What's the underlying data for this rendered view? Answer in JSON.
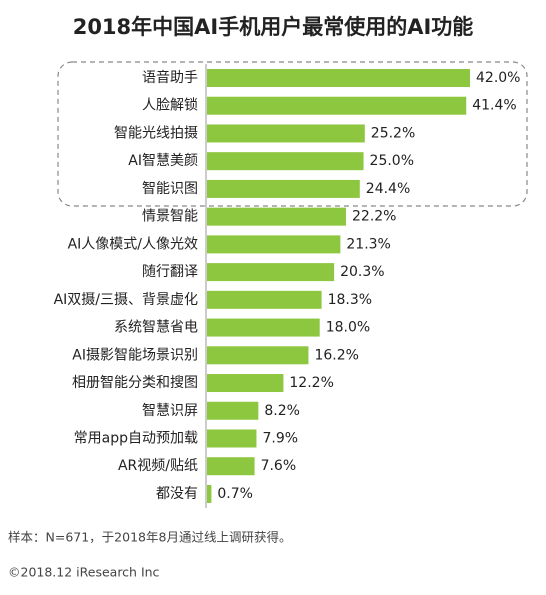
{
  "chart_data": {
    "type": "bar",
    "orientation": "horizontal",
    "title": "2018年中国AI手机用户最常使用的AI功能",
    "categories": [
      "语音助手",
      "人脸解锁",
      "智能光线拍摄",
      "AI智慧美颜",
      "智能识图",
      "情景智能",
      "AI人像模式/人像光效",
      "随行翻译",
      "AI双摄/三摄、背景虚化",
      "系统智慧省电",
      "AI摄影智能场景识别",
      "相册智能分类和搜图",
      "智慧识屏",
      "常用app自动预加载",
      "AR视频/贴纸",
      "都没有"
    ],
    "values": [
      42.0,
      41.4,
      25.2,
      25.0,
      24.4,
      22.2,
      21.3,
      20.3,
      18.3,
      18.0,
      16.2,
      12.2,
      8.2,
      7.9,
      7.6,
      0.7
    ],
    "value_labels": [
      "42.0%",
      "41.4%",
      "25.2%",
      "25.0%",
      "24.4%",
      "22.2%",
      "21.3%",
      "20.3%",
      "18.3%",
      "18.0%",
      "16.2%",
      "12.2%",
      "8.2%",
      "7.9%",
      "7.6%",
      "0.7%"
    ],
    "color": "#8dc63f",
    "note": "样本：N=671，于2018年8月通过线上调研获得。",
    "source": "©2018.12 iResearch Inc"
  }
}
